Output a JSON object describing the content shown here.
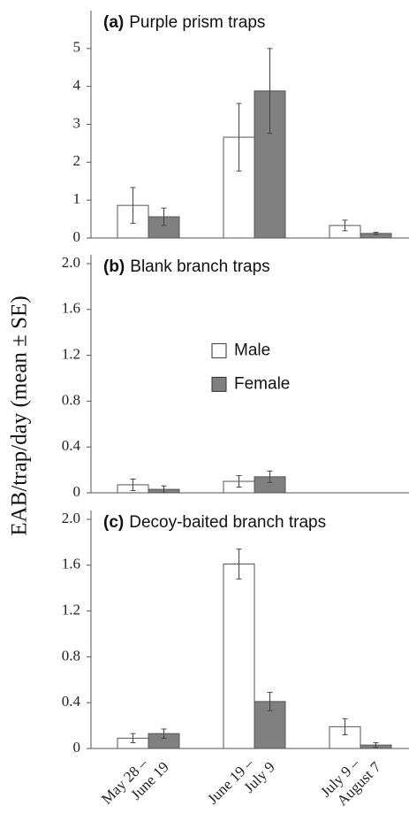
{
  "ylabel": "EAB/trap/day (mean ± SE)",
  "categories": [
    "May 28 – June 19",
    "June 19 – July 9",
    "July 9 – August 7"
  ],
  "chart_data": [
    {
      "type": "bar",
      "label": "(a)",
      "title": "Purple prism traps",
      "ylim": [
        0,
        6
      ],
      "yticks": [
        0,
        1,
        2,
        3,
        4,
        5
      ],
      "series": [
        {
          "name": "Male",
          "color": "#ffffff",
          "values": [
            0.86,
            2.66,
            0.33
          ],
          "errors": [
            0.47,
            0.89,
            0.14
          ]
        },
        {
          "name": "Female",
          "color": "#808080",
          "values": [
            0.56,
            3.88,
            0.12
          ],
          "errors": [
            0.23,
            1.12,
            0.03
          ]
        }
      ]
    },
    {
      "type": "bar",
      "label": "(b)",
      "title": "Blank branch traps",
      "legend": "center",
      "ylim": [
        0,
        2
      ],
      "yticks": [
        0,
        0.4,
        0.8,
        1.2,
        1.6,
        {
          "value": 2,
          "label": "2.0"
        }
      ],
      "series": [
        {
          "name": "Male",
          "color": "#ffffff",
          "values": [
            0.07,
            0.1,
            null
          ],
          "errors": [
            0.05,
            0.05,
            null
          ]
        },
        {
          "name": "Female",
          "color": "#808080",
          "values": [
            0.03,
            0.14,
            null
          ],
          "errors": [
            0.03,
            0.05,
            null
          ]
        }
      ]
    },
    {
      "type": "bar",
      "label": "(c)",
      "title": "Decoy-baited branch traps",
      "ylim": [
        0,
        2
      ],
      "yticks": [
        0,
        0.4,
        0.8,
        1.2,
        1.6,
        {
          "value": 2,
          "label": "2.0"
        }
      ],
      "series": [
        {
          "name": "Male",
          "color": "#ffffff",
          "values": [
            0.09,
            1.61,
            0.19
          ],
          "errors": [
            0.04,
            0.13,
            0.07
          ]
        },
        {
          "name": "Female",
          "color": "#808080",
          "values": [
            0.13,
            0.41,
            0.03
          ],
          "errors": [
            0.04,
            0.08,
            0.02
          ]
        }
      ]
    }
  ]
}
